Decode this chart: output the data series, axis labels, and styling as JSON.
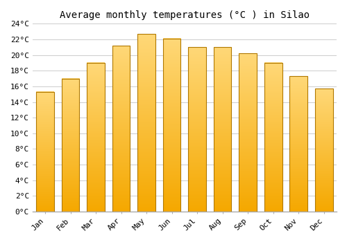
{
  "months": [
    "Jan",
    "Feb",
    "Mar",
    "Apr",
    "May",
    "Jun",
    "Jul",
    "Aug",
    "Sep",
    "Oct",
    "Nov",
    "Dec"
  ],
  "temperatures": [
    15.3,
    17.0,
    19.0,
    21.2,
    22.7,
    22.1,
    21.0,
    21.0,
    20.2,
    19.0,
    17.3,
    15.7
  ],
  "title": "Average monthly temperatures (°C ) in Silao",
  "bar_color_bottom": "#F5A800",
  "bar_color_top": "#FFD878",
  "bar_edge_color": "#B07800",
  "ylim": [
    0,
    24
  ],
  "yticks": [
    0,
    2,
    4,
    6,
    8,
    10,
    12,
    14,
    16,
    18,
    20,
    22,
    24
  ],
  "ytick_labels": [
    "0°C",
    "2°C",
    "4°C",
    "6°C",
    "8°C",
    "10°C",
    "12°C",
    "14°C",
    "16°C",
    "18°C",
    "20°C",
    "22°C",
    "24°C"
  ],
  "grid_color": "#cccccc",
  "bg_color": "#ffffff",
  "title_fontsize": 10,
  "tick_fontsize": 8,
  "bar_width": 0.7
}
